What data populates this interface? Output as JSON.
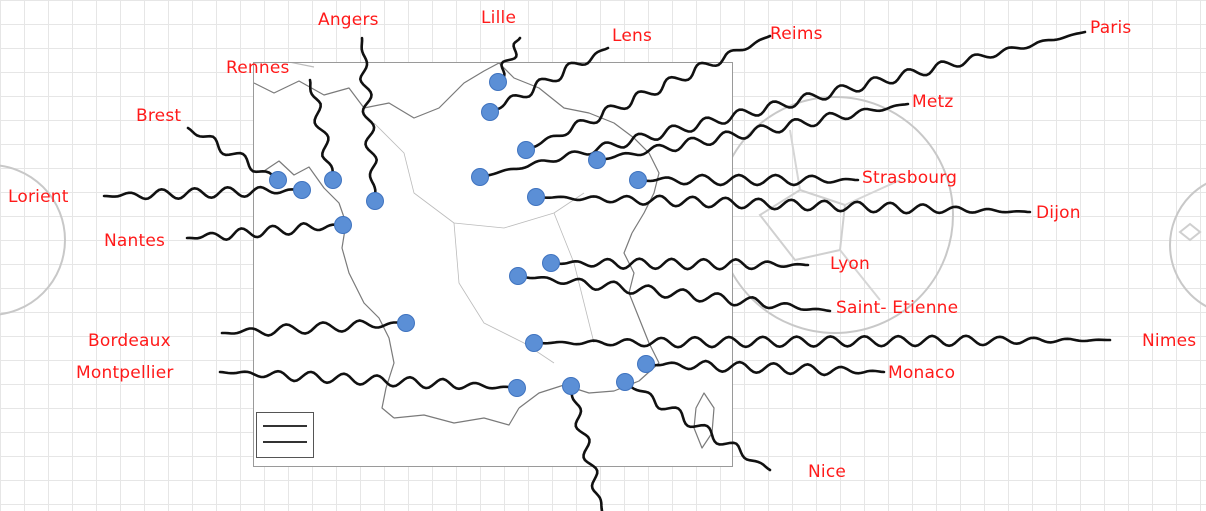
{
  "map_title": "",
  "colors": {
    "label": "#ff1a1a",
    "marker": "#5b8fd6",
    "marker_stroke": "#3f73bf",
    "wavy_line": "#111111",
    "coast_line": "#7a7a7a"
  },
  "cities": [
    {
      "id": "lille",
      "label": "Lille"
    },
    {
      "id": "lens",
      "label": "Lens"
    },
    {
      "id": "reims",
      "label": "Reims"
    },
    {
      "id": "paris",
      "label": "Paris"
    },
    {
      "id": "angers",
      "label": "Angers"
    },
    {
      "id": "rennes",
      "label": "Rennes"
    },
    {
      "id": "brest",
      "label": "Brest"
    },
    {
      "id": "lorient",
      "label": "Lorient"
    },
    {
      "id": "nantes",
      "label": "Nantes"
    },
    {
      "id": "metz",
      "label": "Metz"
    },
    {
      "id": "strasbourg",
      "label": "Strasbourg"
    },
    {
      "id": "dijon",
      "label": "Dijon"
    },
    {
      "id": "lyon",
      "label": "Lyon"
    },
    {
      "id": "saint-etienne",
      "label": "Saint- Etienne"
    },
    {
      "id": "bordeaux",
      "label": "Bordeaux"
    },
    {
      "id": "montpellier",
      "label": "Montpellier"
    },
    {
      "id": "nimes",
      "label": "Nimes"
    },
    {
      "id": "monaco",
      "label": "Monaco"
    },
    {
      "id": "nice",
      "label": "Nice"
    },
    {
      "id": "marseille",
      "label": ""
    }
  ]
}
